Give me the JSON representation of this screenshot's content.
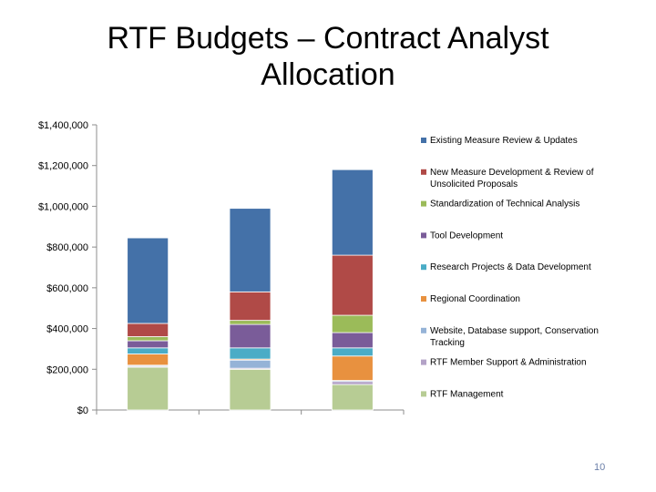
{
  "slide": {
    "title_line1": "RTF Budgets – Contract Analyst",
    "title_line2": "Allocation",
    "page_number": "10"
  },
  "chart_data": {
    "type": "bar",
    "stacked": true,
    "categories": [
      "",
      "",
      ""
    ],
    "ylim": [
      0,
      1400000
    ],
    "yticks": [
      0,
      200000,
      400000,
      600000,
      800000,
      1000000,
      1200000,
      1400000
    ],
    "ytick_labels": [
      "$0",
      "$200,000",
      "$400,000",
      "$600,000",
      "$800,000",
      "$1,000,000",
      "$1,200,000",
      "$1,400,000"
    ],
    "grid": false,
    "legend_position": "right",
    "series": [
      {
        "name": "RTF Management",
        "color": "#b7cc94",
        "values": [
          210000,
          200000,
          125000
        ]
      },
      {
        "name": "RTF Member Support & Administration",
        "color": "#b3a2c7",
        "values": [
          5000,
          5000,
          15000
        ]
      },
      {
        "name": "Website, Database support, Conservation Tracking",
        "color": "#95b3d7",
        "values": [
          5000,
          40000,
          5000
        ]
      },
      {
        "name": "Regional Coordination",
        "color": "#e8913f",
        "values": [
          55000,
          5000,
          120000
        ]
      },
      {
        "name": "Research Projects & Data Development",
        "color": "#4aacc6",
        "values": [
          30000,
          55000,
          40000
        ]
      },
      {
        "name": "Tool Development",
        "color": "#7a5c99",
        "values": [
          35000,
          115000,
          75000
        ]
      },
      {
        "name": "Standardization of Technical Analysis",
        "color": "#9bbb59",
        "values": [
          20000,
          20000,
          85000
        ]
      },
      {
        "name": "New Measure Development & Review of Unsolicited Proposals",
        "color": "#b04a47",
        "values": [
          65000,
          140000,
          295000
        ]
      },
      {
        "name": "Existing Measure Review & Updates",
        "color": "#4471a8",
        "values": [
          420000,
          410000,
          420000
        ]
      }
    ]
  }
}
